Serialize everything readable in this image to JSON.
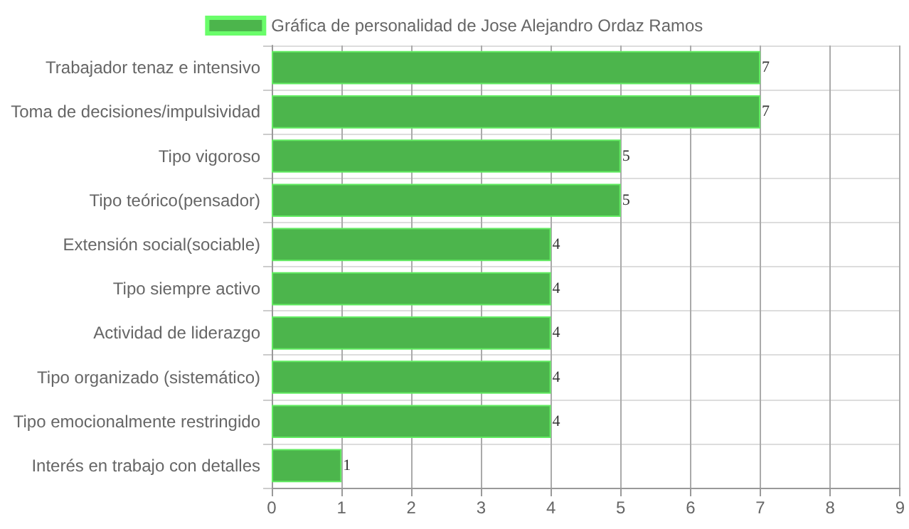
{
  "chart_data": {
    "type": "bar",
    "orientation": "horizontal",
    "categories": [
      "Trabajador tenaz e intensivo",
      "Toma de decisiones/impulsividad",
      "Tipo vigoroso",
      "Tipo teórico(pensador)",
      "Extensión social(sociable)",
      "Tipo siempre activo",
      "Actividad de liderazgo",
      "Tipo organizado (sistemático)",
      "Tipo emocionalmente restringido",
      "Interés en trabajo con detalles"
    ],
    "series": [
      {
        "name": "Gráfica de personalidad de Jose Alejandro Ordaz Ramos",
        "color": "#4cb54c",
        "values": [
          7,
          7,
          5,
          5,
          4,
          4,
          4,
          4,
          4,
          1
        ]
      }
    ],
    "xlim": [
      0,
      9
    ],
    "xticks": [
      0,
      1,
      2,
      3,
      4,
      5,
      6,
      7,
      8,
      9
    ],
    "grid": true,
    "legend": "top",
    "data_labels": true
  }
}
